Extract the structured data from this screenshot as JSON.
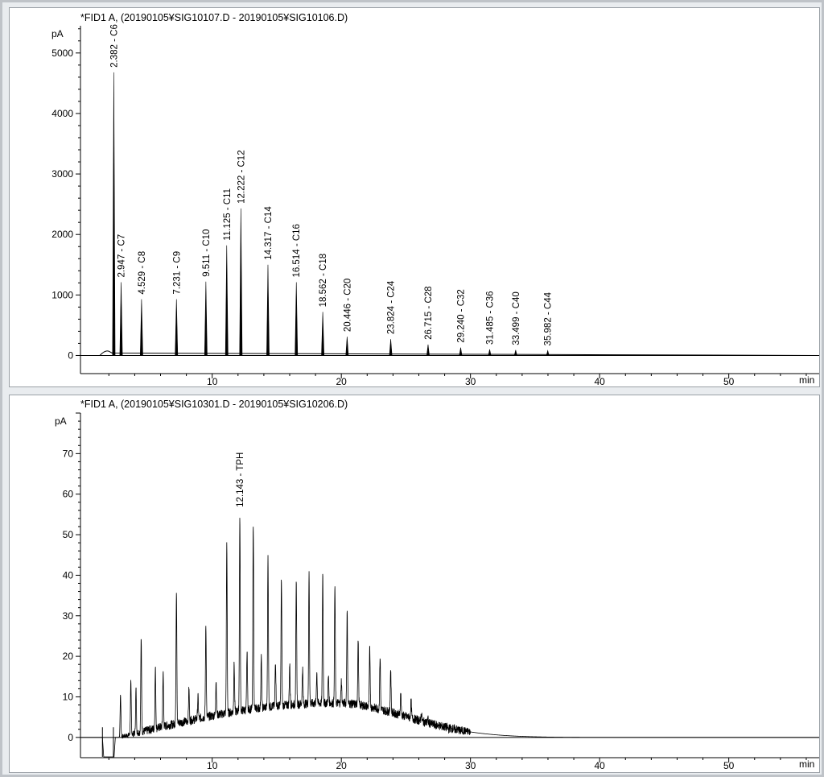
{
  "chart_data": [
    {
      "type": "line",
      "title": "*FID1 A, (20190105¥SIG10107.D - 20190105¥SIG10106.D)",
      "ylabel": "pA",
      "xlabel": "min",
      "xlim": [
        -0.2,
        57.0
      ],
      "ylim": [
        -300,
        5450
      ],
      "yticks": [
        0,
        1000,
        2000,
        3000,
        4000,
        5000
      ],
      "xticks": [
        10,
        20,
        30,
        40,
        50
      ],
      "peaks": [
        {
          "rt": 2.382,
          "height": 4680,
          "label": "2.382 - C6"
        },
        {
          "rt": 2.947,
          "height": 1210,
          "label": "2.947 - C7"
        },
        {
          "rt": 4.529,
          "height": 930,
          "label": "4.529 - C8"
        },
        {
          "rt": 7.231,
          "height": 930,
          "label": "7.231 - C9"
        },
        {
          "rt": 9.511,
          "height": 1220,
          "label": "9.511 - C10"
        },
        {
          "rt": 11.125,
          "height": 1820,
          "label": "11.125 - C11"
        },
        {
          "rt": 12.222,
          "height": 2430,
          "label": "12.222 - C12"
        },
        {
          "rt": 14.317,
          "height": 1500,
          "label": "14.317 - C14"
        },
        {
          "rt": 16.514,
          "height": 1210,
          "label": "16.514 - C16"
        },
        {
          "rt": 18.562,
          "height": 720,
          "label": "18.562 - C18"
        },
        {
          "rt": 20.446,
          "height": 310,
          "label": "20.446 - C20"
        },
        {
          "rt": 23.824,
          "height": 270,
          "label": "23.824 - C24"
        },
        {
          "rt": 26.715,
          "height": 180,
          "label": "26.715 - C28"
        },
        {
          "rt": 29.24,
          "height": 130,
          "label": "29.240 - C32"
        },
        {
          "rt": 31.485,
          "height": 100,
          "label": "31.485 - C36"
        },
        {
          "rt": 33.499,
          "height": 90,
          "label": "33.499 - C40"
        },
        {
          "rt": 35.982,
          "height": 80,
          "label": "35.982 - C44"
        }
      ]
    },
    {
      "type": "line",
      "title": "*FID1 A, (20190105¥SIG10301.D - 20190105¥SIG10206.D)",
      "ylabel": "pA",
      "xlabel": "min",
      "xlim": [
        -0.2,
        57.0
      ],
      "ylim": [
        -5,
        80
      ],
      "yticks": [
        0,
        10,
        20,
        30,
        40,
        50,
        60,
        70
      ],
      "xticks": [
        10,
        20,
        30,
        40,
        50
      ],
      "peak_label": {
        "rt": 12.143,
        "text": "12.143 - TPH"
      },
      "hump": {
        "start": 2.8,
        "max_rt": 19.5,
        "max": 8.5,
        "end": 32
      },
      "peaks": [
        {
          "rt": 2.9,
          "height": 10.5
        },
        {
          "rt": 3.7,
          "height": 13.5
        },
        {
          "rt": 4.1,
          "height": 12
        },
        {
          "rt": 4.5,
          "height": 24.5
        },
        {
          "rt": 5.6,
          "height": 17
        },
        {
          "rt": 6.2,
          "height": 16
        },
        {
          "rt": 7.23,
          "height": 36.5
        },
        {
          "rt": 8.2,
          "height": 12
        },
        {
          "rt": 8.9,
          "height": 10
        },
        {
          "rt": 9.51,
          "height": 27.5
        },
        {
          "rt": 10.3,
          "height": 14
        },
        {
          "rt": 11.13,
          "height": 47.5
        },
        {
          "rt": 11.7,
          "height": 18
        },
        {
          "rt": 12.14,
          "height": 54.5
        },
        {
          "rt": 12.7,
          "height": 21
        },
        {
          "rt": 13.18,
          "height": 53
        },
        {
          "rt": 13.8,
          "height": 20
        },
        {
          "rt": 14.32,
          "height": 45
        },
        {
          "rt": 14.9,
          "height": 19
        },
        {
          "rt": 15.36,
          "height": 39
        },
        {
          "rt": 16.0,
          "height": 18
        },
        {
          "rt": 16.51,
          "height": 38
        },
        {
          "rt": 17.0,
          "height": 17
        },
        {
          "rt": 17.5,
          "height": 40.5
        },
        {
          "rt": 18.1,
          "height": 16
        },
        {
          "rt": 18.56,
          "height": 40.5
        },
        {
          "rt": 19.0,
          "height": 15
        },
        {
          "rt": 19.5,
          "height": 37.5
        },
        {
          "rt": 20.0,
          "height": 14
        },
        {
          "rt": 20.45,
          "height": 31
        },
        {
          "rt": 21.3,
          "height": 24
        },
        {
          "rt": 22.2,
          "height": 22
        },
        {
          "rt": 23.0,
          "height": 20
        },
        {
          "rt": 23.82,
          "height": 17
        },
        {
          "rt": 24.6,
          "height": 11
        },
        {
          "rt": 25.4,
          "height": 9
        },
        {
          "rt": 26.2,
          "height": 6
        },
        {
          "rt": 26.7,
          "height": 4.5
        },
        {
          "rt": 27.5,
          "height": 3
        },
        {
          "rt": 28.3,
          "height": 2
        },
        {
          "rt": 29.2,
          "height": 1.5
        }
      ]
    }
  ]
}
